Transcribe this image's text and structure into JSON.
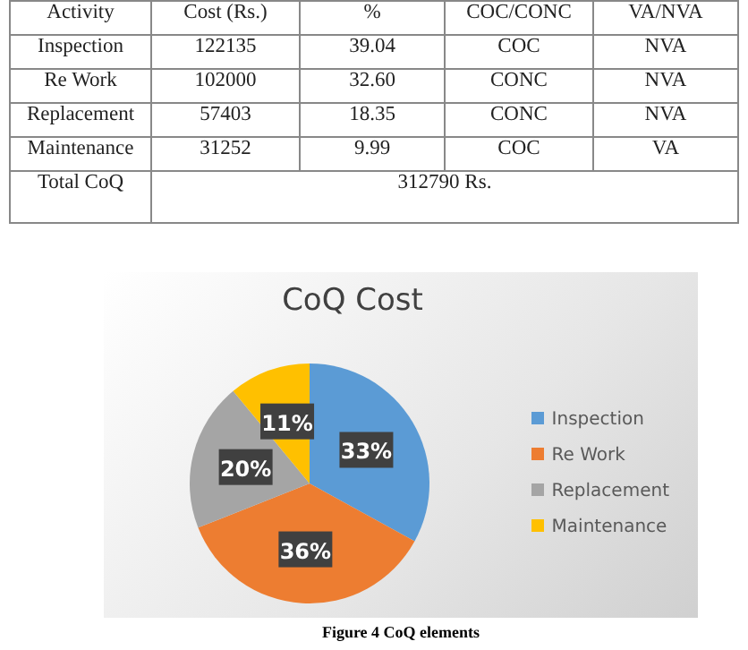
{
  "chart_data": [
    {
      "type": "other",
      "categories": [
        "Activity",
        "Cost (Rs.)",
        "%",
        "COC/CONC",
        "VA/NVA"
      ],
      "annotations": [
        "Inspection",
        "122135",
        "39.04",
        "COC",
        "NVA",
        "Re Work",
        "102000",
        "32.60",
        "CONC",
        "NVA",
        "Replacement",
        "57403",
        "18.35",
        "CONC",
        "NVA",
        "Maintenance",
        "31252",
        "9.99",
        "COC",
        "VA",
        "Total CoQ",
        "312790 Rs."
      ]
    },
    {
      "type": "pie",
      "title": "CoQ Cost",
      "categories": [
        "Inspection",
        "Re Work",
        "Replacement",
        "Maintenance"
      ],
      "values": [
        33,
        36,
        20,
        11
      ],
      "colors": [
        "#5b9bd5",
        "#ed7d31",
        "#a5a5a5",
        "#ffc000"
      ],
      "value_labels": [
        "33%",
        "36%",
        "20%",
        "11%"
      ],
      "legend": "right",
      "annotations": [
        "Figure 4 CoQ elements"
      ]
    }
  ]
}
